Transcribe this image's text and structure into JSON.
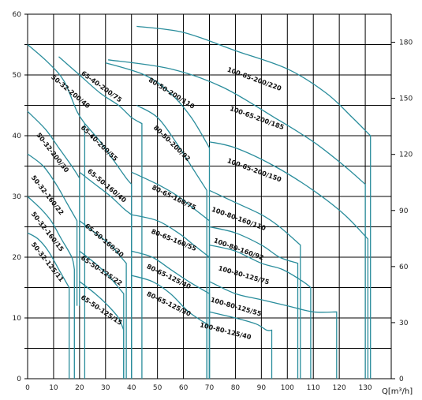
{
  "chart_data": {
    "type": "line",
    "title": "",
    "xlabel": "Q[m³/h]",
    "ylabel": "",
    "xlim": [
      0,
      140
    ],
    "ylim": [
      0,
      60
    ],
    "y2lim": [
      0,
      195
    ],
    "grid": true,
    "x_ticks": [
      0,
      10,
      20,
      30,
      40,
      50,
      60,
      70,
      80,
      90,
      100,
      110,
      120,
      130
    ],
    "y_ticks": [
      0,
      10,
      20,
      30,
      40,
      50,
      60
    ],
    "y2_ticks": [
      0,
      30,
      60,
      90,
      120,
      150,
      180
    ],
    "series": [
      {
        "name": "50-32-200/40",
        "label_at": [
          16,
          47
        ],
        "label_rot": 40,
        "points": [
          [
            0,
            55
          ],
          [
            8,
            52
          ],
          [
            14,
            49
          ],
          [
            19,
            44
          ],
          [
            22,
            42
          ],
          [
            22,
            0
          ]
        ]
      },
      {
        "name": "50-32-200/30",
        "label_at": [
          9,
          37
        ],
        "label_rot": 52,
        "points": [
          [
            0,
            44
          ],
          [
            7,
            41
          ],
          [
            12,
            38
          ],
          [
            17,
            35
          ],
          [
            20,
            33
          ],
          [
            20,
            12
          ]
        ]
      },
      {
        "name": "50-32-160/22",
        "label_at": [
          7,
          30
        ],
        "label_rot": 52,
        "points": [
          [
            0,
            37
          ],
          [
            6,
            35
          ],
          [
            11,
            32
          ],
          [
            15,
            29
          ],
          [
            19,
            26
          ],
          [
            19,
            12
          ]
        ]
      },
      {
        "name": "50-32-160/15",
        "label_at": [
          7,
          24
        ],
        "label_rot": 52,
        "points": [
          [
            0,
            30
          ],
          [
            5,
            28
          ],
          [
            9,
            26
          ],
          [
            13,
            23
          ],
          [
            17,
            20
          ],
          [
            18,
            18
          ],
          [
            18,
            0
          ]
        ]
      },
      {
        "name": "50-32-125/11",
        "label_at": [
          7,
          19
        ],
        "label_rot": 52,
        "points": [
          [
            0,
            24
          ],
          [
            4,
            23
          ],
          [
            8,
            21
          ],
          [
            12,
            18
          ],
          [
            16,
            15
          ],
          [
            16,
            0
          ]
        ]
      },
      {
        "name": "65-40-200/75",
        "label_at": [
          28,
          47.8
        ],
        "label_rot": 36,
        "points": [
          [
            12,
            53
          ],
          [
            20,
            50
          ],
          [
            28,
            47
          ],
          [
            35,
            45
          ],
          [
            40,
            43
          ],
          [
            44,
            42
          ],
          [
            44,
            0
          ]
        ]
      },
      {
        "name": "65-40-200/55",
        "label_at": [
          27,
          38.5
        ],
        "label_rot": 44,
        "points": [
          [
            22,
            42
          ],
          [
            28,
            39
          ],
          [
            33,
            36
          ],
          [
            38,
            33
          ],
          [
            40,
            32
          ],
          [
            40,
            0
          ]
        ]
      },
      {
        "name": "65-50-160/40",
        "label_at": [
          30,
          31.5
        ],
        "label_rot": 40,
        "points": [
          [
            20,
            34
          ],
          [
            26,
            32
          ],
          [
            32,
            30
          ],
          [
            37,
            28
          ],
          [
            40,
            27
          ],
          [
            40,
            0
          ]
        ]
      },
      {
        "name": "65-50-160/30",
        "label_at": [
          29,
          22.5
        ],
        "label_rot": 40,
        "points": [
          [
            20,
            26
          ],
          [
            26,
            24
          ],
          [
            32,
            22
          ],
          [
            36,
            20
          ],
          [
            38,
            19
          ],
          [
            38,
            0
          ]
        ]
      },
      {
        "name": "65-50-125/22",
        "label_at": [
          28,
          17.5
        ],
        "label_rot": 34,
        "points": [
          [
            20,
            21
          ],
          [
            26,
            19
          ],
          [
            31,
            17
          ],
          [
            35,
            15
          ],
          [
            37,
            14
          ],
          [
            37,
            0
          ]
        ]
      },
      {
        "name": "65-50-125/15",
        "label_at": [
          28,
          11
        ],
        "label_rot": 34,
        "points": [
          [
            20,
            16
          ],
          [
            26,
            14
          ],
          [
            31,
            12
          ],
          [
            35,
            10
          ],
          [
            37,
            8
          ],
          [
            37,
            0
          ]
        ]
      },
      {
        "name": "80-50-200/110",
        "label_at": [
          55,
          46.7
        ],
        "label_rot": 32,
        "points": [
          [
            30,
            52
          ],
          [
            45,
            50
          ],
          [
            55,
            47
          ],
          [
            63,
            43
          ],
          [
            70,
            38
          ],
          [
            70,
            0
          ]
        ]
      },
      {
        "name": "80-50-200/92",
        "label_at": [
          55,
          38.5
        ],
        "label_rot": 44,
        "points": [
          [
            42,
            45
          ],
          [
            50,
            43
          ],
          [
            57,
            39
          ],
          [
            63,
            35
          ],
          [
            69,
            31
          ],
          [
            69,
            0
          ]
        ]
      },
      {
        "name": "80-65-160/75",
        "label_at": [
          56,
          29.5
        ],
        "label_rot": 26,
        "points": [
          [
            40,
            34
          ],
          [
            50,
            32
          ],
          [
            58,
            30
          ],
          [
            64,
            28
          ],
          [
            70,
            26
          ],
          [
            70,
            0
          ]
        ]
      },
      {
        "name": "80-65-160/55",
        "label_at": [
          56,
          22.5
        ],
        "label_rot": 22,
        "points": [
          [
            40,
            27
          ],
          [
            50,
            26
          ],
          [
            58,
            24
          ],
          [
            64,
            22
          ],
          [
            70,
            20
          ],
          [
            70,
            0
          ]
        ]
      },
      {
        "name": "80-65-125/40",
        "label_at": [
          54,
          16.5
        ],
        "label_rot": 26,
        "points": [
          [
            40,
            21
          ],
          [
            48,
            20
          ],
          [
            55,
            18
          ],
          [
            62,
            16
          ],
          [
            70,
            14
          ],
          [
            70,
            0
          ]
        ]
      },
      {
        "name": "80-65-125/30",
        "label_at": [
          54,
          12
        ],
        "label_rot": 26,
        "points": [
          [
            40,
            17
          ],
          [
            48,
            16
          ],
          [
            55,
            14
          ],
          [
            62,
            11
          ],
          [
            69,
            9
          ],
          [
            69,
            0
          ]
        ]
      },
      {
        "name": "100-65-200/220",
        "label_at": [
          87,
          49
        ],
        "label_rot": 20,
        "points": [
          [
            42,
            58
          ],
          [
            60,
            57
          ],
          [
            80,
            54
          ],
          [
            100,
            51
          ],
          [
            115,
            47
          ],
          [
            125,
            43
          ],
          [
            132,
            40
          ],
          [
            132,
            0
          ]
        ]
      },
      {
        "name": "100-65-200/185",
        "label_at": [
          88,
          42.6
        ],
        "label_rot": 20,
        "points": [
          [
            31,
            52.5
          ],
          [
            55,
            51
          ],
          [
            75,
            48
          ],
          [
            95,
            43
          ],
          [
            110,
            39
          ],
          [
            122,
            35
          ],
          [
            130,
            32
          ],
          [
            130,
            0
          ]
        ]
      },
      {
        "name": "100-65-200/150",
        "label_at": [
          87,
          34
        ],
        "label_rot": 20,
        "points": [
          [
            70,
            39
          ],
          [
            80,
            38
          ],
          [
            95,
            35
          ],
          [
            110,
            31
          ],
          [
            122,
            27
          ],
          [
            131,
            23
          ],
          [
            131,
            0
          ]
        ]
      },
      {
        "name": "100-80-160/110",
        "label_at": [
          81,
          26
        ],
        "label_rot": 20,
        "points": [
          [
            70,
            31
          ],
          [
            80,
            29
          ],
          [
            90,
            27
          ],
          [
            97,
            25
          ],
          [
            105,
            22
          ],
          [
            105,
            0
          ]
        ]
      },
      {
        "name": "100-80-160/92",
        "label_at": [
          81,
          21
        ],
        "label_rot": 20,
        "points": [
          [
            70,
            25
          ],
          [
            80,
            24
          ],
          [
            90,
            22
          ],
          [
            97,
            20
          ],
          [
            104,
            19
          ],
          [
            104,
            0
          ]
        ]
      },
      {
        "name": "100-80-125/75",
        "label_at": [
          83,
          16.7
        ],
        "label_rot": 16,
        "points": [
          [
            70,
            22
          ],
          [
            80,
            21
          ],
          [
            90,
            19
          ],
          [
            98,
            18
          ],
          [
            106,
            16
          ],
          [
            109,
            15
          ],
          [
            109,
            0
          ]
        ]
      },
      {
        "name": "100-80-125/55",
        "label_at": [
          80,
          11.5
        ],
        "label_rot": 16,
        "points": [
          [
            70,
            16
          ],
          [
            80,
            14
          ],
          [
            90,
            13
          ],
          [
            100,
            12
          ],
          [
            110,
            11
          ],
          [
            119,
            11
          ],
          [
            119,
            0
          ]
        ]
      },
      {
        "name": "100-80-125/40",
        "label_at": [
          76,
          7.5
        ],
        "label_rot": 14,
        "points": [
          [
            70,
            11
          ],
          [
            80,
            10
          ],
          [
            88,
            9
          ],
          [
            92,
            8
          ],
          [
            94,
            8
          ],
          [
            94,
            0
          ]
        ]
      }
    ]
  }
}
